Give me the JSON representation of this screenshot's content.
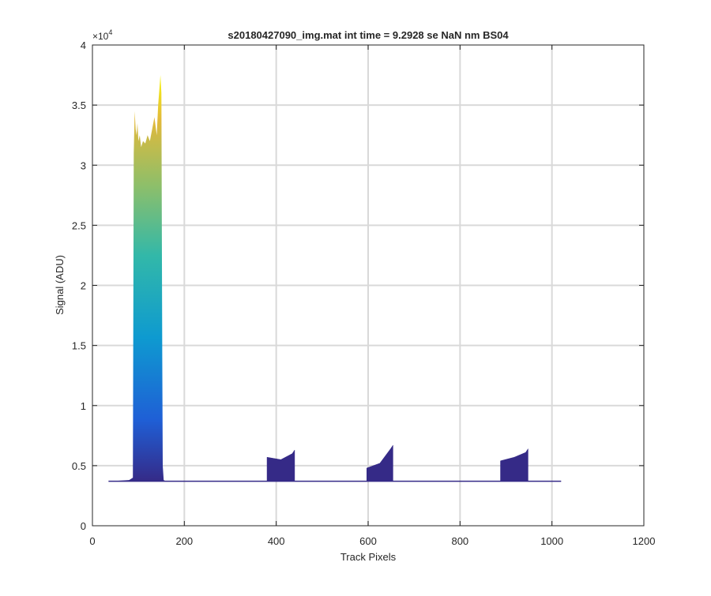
{
  "chart_data": {
    "type": "area",
    "title": "s20180427090_img.mat int time = 9.2928 se  NaN nm BS04",
    "xlabel": "Track Pixels",
    "ylabel": "Signal (ADU)",
    "exponent_label": "×10",
    "exponent_power": "4",
    "xlim": [
      0,
      1200
    ],
    "ylim": [
      0,
      40000
    ],
    "x_ticks": [
      0,
      200,
      400,
      600,
      800,
      1000,
      1200
    ],
    "x_tick_labels": [
      "0",
      "200",
      "400",
      "600",
      "800",
      "1000",
      "1200"
    ],
    "y_ticks": [
      0,
      5000,
      10000,
      15000,
      20000,
      25000,
      30000,
      35000,
      40000
    ],
    "y_tick_labels": [
      "0",
      "0.5",
      "1",
      "1.5",
      "2",
      "2.5",
      "3",
      "3.5",
      "4"
    ],
    "grid": true,
    "colormap": "parula",
    "color_low": "#352a87",
    "color_high": "#f9fb0e",
    "baseline": 3700,
    "series": [
      {
        "x": [
          35,
          80,
          88,
          90,
          92,
          94,
          96,
          98,
          100,
          103,
          106,
          110,
          115,
          120,
          125,
          130,
          135,
          140,
          143,
          146,
          148,
          150,
          152,
          153,
          155,
          160,
          1020
        ],
        "y": [
          3700,
          3800,
          4000,
          31000,
          34500,
          33000,
          32500,
          33500,
          32000,
          32500,
          31500,
          32000,
          31800,
          32500,
          32000,
          33000,
          34000,
          32500,
          35000,
          36500,
          37500,
          36000,
          14000,
          5000,
          3800,
          3700,
          3700
        ]
      }
    ],
    "bumps": [
      {
        "start": 380,
        "end": 440,
        "y_start": 5700,
        "y_mid": 5500,
        "y_end": 6000
      },
      {
        "start": 597,
        "end": 654,
        "y_start": 4800,
        "y_mid": 5200,
        "y_end": 6400
      },
      {
        "start": 888,
        "end": 948,
        "y_start": 5400,
        "y_mid": 5700,
        "y_end": 6100
      }
    ]
  }
}
